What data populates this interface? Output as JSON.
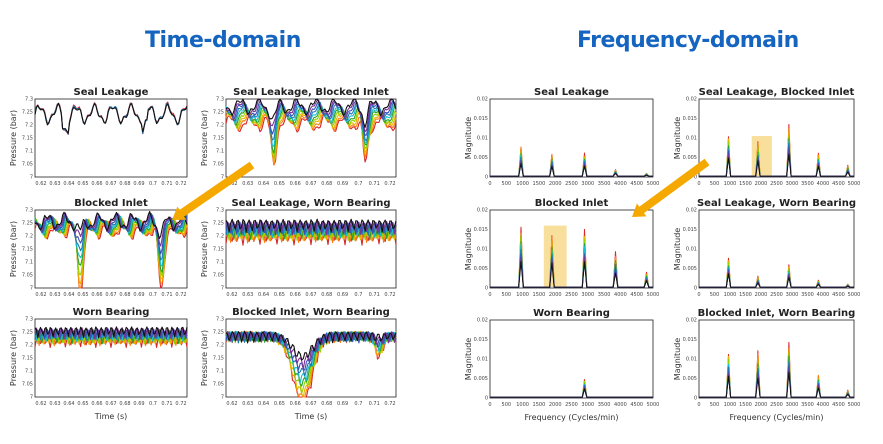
{
  "sections": {
    "time_title": "Time-domain",
    "freq_title": "Frequency-domain"
  },
  "colors": {
    "title": "#1565c0",
    "arrow": "#f5a800",
    "highlight": "#f7d98a",
    "series": [
      "#d62728",
      "#ff7f0e",
      "#e8b400",
      "#8fd400",
      "#2ca02c",
      "#17becf",
      "#1f77b4",
      "#3a4fb8",
      "#7b3294",
      "#111111"
    ]
  },
  "time_axis": {
    "xlabel": "Time (s)",
    "ylabel": "Pressure (bar)",
    "xticks": [
      "0.62",
      "0.63",
      "0.64",
      "0.65",
      "0.66",
      "0.67",
      "0.68",
      "0.69",
      "0.7",
      "0.71",
      "0.72"
    ],
    "yticks": [
      "7",
      "7.05",
      "7.1",
      "7.15",
      "7.2",
      "7.25",
      "7.3"
    ],
    "ylim": [
      7,
      7.3
    ]
  },
  "freq_axis": {
    "xlabel": "Frequency (Cycles/min)",
    "ylabel": "Magnitude",
    "xticks": [
      "0",
      "500",
      "1000",
      "1500",
      "2000",
      "2500",
      "3000",
      "3500",
      "4000",
      "4500",
      "5000"
    ],
    "yticks": [
      "0",
      "0.005",
      "0.01",
      "0.015",
      "0.02"
    ],
    "ylim": [
      0,
      0.02
    ]
  },
  "chart_data": [
    {
      "type": "line",
      "domain": "time",
      "title": "Seal Leakage",
      "profile": "seal"
    },
    {
      "type": "line",
      "domain": "time",
      "title": "Seal Leakage, Blocked Inlet",
      "profile": "seal_blocked"
    },
    {
      "type": "line",
      "domain": "time",
      "title": "Blocked Inlet",
      "profile": "blocked"
    },
    {
      "type": "line",
      "domain": "time",
      "title": "Seal Leakage, Worn Bearing",
      "profile": "seal_worn"
    },
    {
      "type": "line",
      "domain": "time",
      "title": "Worn Bearing",
      "profile": "worn"
    },
    {
      "type": "line",
      "domain": "time",
      "title": "Blocked Inlet, Worn Bearing",
      "profile": "blocked_worn"
    },
    {
      "type": "line",
      "domain": "frequency",
      "title": "Seal Leakage",
      "peaks": [
        {
          "x": 950,
          "y": 0.008
        },
        {
          "x": 1900,
          "y": 0.006
        },
        {
          "x": 2900,
          "y": 0.006
        },
        {
          "x": 3850,
          "y": 0.002
        },
        {
          "x": 4800,
          "y": 0.001
        }
      ]
    },
    {
      "type": "line",
      "domain": "frequency",
      "title": "Seal Leakage, Blocked Inlet",
      "peaks": [
        {
          "x": 950,
          "y": 0.011
        },
        {
          "x": 1900,
          "y": 0.009
        },
        {
          "x": 2900,
          "y": 0.013
        },
        {
          "x": 3850,
          "y": 0.006
        },
        {
          "x": 4800,
          "y": 0.003
        }
      ]
    },
    {
      "type": "line",
      "domain": "frequency",
      "title": "Blocked Inlet",
      "peaks": [
        {
          "x": 950,
          "y": 0.016
        },
        {
          "x": 1900,
          "y": 0.014
        },
        {
          "x": 2900,
          "y": 0.015
        },
        {
          "x": 3850,
          "y": 0.009
        },
        {
          "x": 4800,
          "y": 0.004
        }
      ]
    },
    {
      "type": "line",
      "domain": "frequency",
      "title": "Seal Leakage, Worn Bearing",
      "peaks": [
        {
          "x": 950,
          "y": 0.008
        },
        {
          "x": 1900,
          "y": 0.003
        },
        {
          "x": 2900,
          "y": 0.006
        },
        {
          "x": 3850,
          "y": 0.002
        },
        {
          "x": 4800,
          "y": 0.001
        }
      ]
    },
    {
      "type": "line",
      "domain": "frequency",
      "title": "Worn Bearing",
      "peaks": [
        {
          "x": 2900,
          "y": 0.005
        }
      ]
    },
    {
      "type": "line",
      "domain": "frequency",
      "title": "Blocked Inlet, Worn Bearing",
      "peaks": [
        {
          "x": 950,
          "y": 0.012
        },
        {
          "x": 1900,
          "y": 0.012
        },
        {
          "x": 2900,
          "y": 0.014
        },
        {
          "x": 3850,
          "y": 0.006
        },
        {
          "x": 4800,
          "y": 0.002
        }
      ]
    }
  ]
}
